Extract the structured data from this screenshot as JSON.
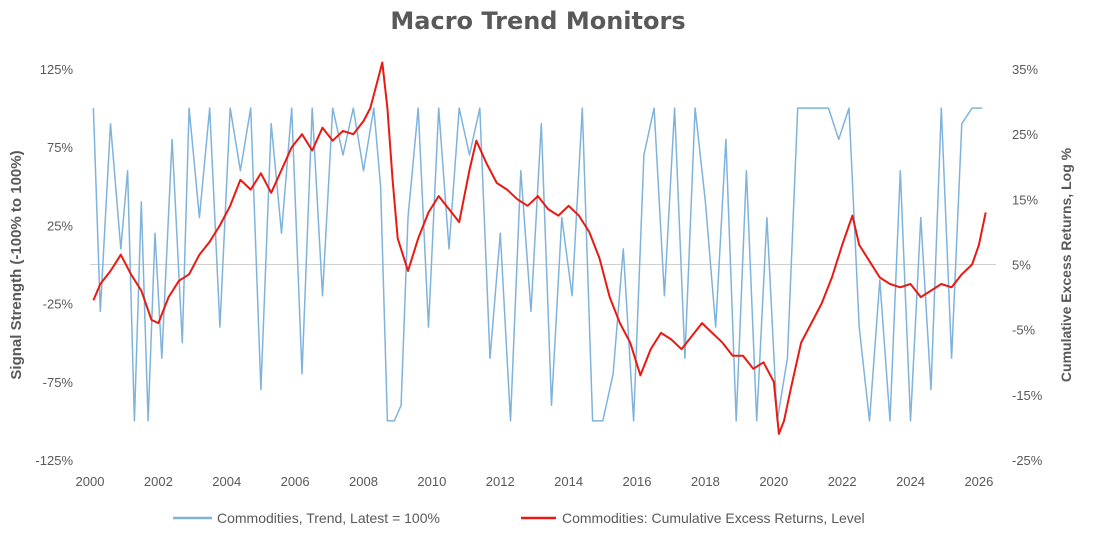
{
  "chart_data": {
    "type": "line",
    "title": "Macro Trend Monitors",
    "y_left_label": "Signal Strength (-100% to 100%)",
    "y_right_label": "Cumulative Excess Returns, Log %",
    "x_ticks": [
      "2000",
      "2002",
      "2004",
      "2006",
      "2008",
      "2010",
      "2012",
      "2014",
      "2016",
      "2018",
      "2020",
      "2022",
      "2024",
      "2026"
    ],
    "x_range": [
      2000,
      2026.5
    ],
    "y_left_ticks": [
      "125%",
      "75%",
      "25%",
      "-25%",
      "-75%",
      "-125%"
    ],
    "y_left_range": [
      -125,
      125
    ],
    "y_right_ticks": [
      "35%",
      "25%",
      "15%",
      "5%",
      "-5%",
      "-15%",
      "-25%"
    ],
    "y_right_range": [
      -25,
      35
    ],
    "zero_line": 0,
    "legend_position": "bottom",
    "series": [
      {
        "name": "Commodities, Trend, Latest = 100%",
        "axis": "left",
        "color": "#7fb3dc",
        "x": [
          2000.1,
          2000.3,
          2000.6,
          2000.9,
          2001.1,
          2001.3,
          2001.5,
          2001.7,
          2001.9,
          2002.1,
          2002.4,
          2002.7,
          2002.9,
          2003.2,
          2003.5,
          2003.8,
          2004.1,
          2004.4,
          2004.7,
          2005.0,
          2005.3,
          2005.6,
          2005.9,
          2006.2,
          2006.5,
          2006.8,
          2007.1,
          2007.4,
          2007.7,
          2008.0,
          2008.3,
          2008.5,
          2008.7,
          2008.9,
          2009.1,
          2009.3,
          2009.6,
          2009.9,
          2010.2,
          2010.5,
          2010.8,
          2011.1,
          2011.4,
          2011.7,
          2012.0,
          2012.3,
          2012.6,
          2012.9,
          2013.2,
          2013.5,
          2013.8,
          2014.1,
          2014.4,
          2014.7,
          2015.0,
          2015.3,
          2015.6,
          2015.9,
          2016.2,
          2016.5,
          2016.8,
          2017.1,
          2017.4,
          2017.7,
          2018.0,
          2018.3,
          2018.6,
          2018.9,
          2019.2,
          2019.5,
          2019.8,
          2020.1,
          2020.4,
          2020.7,
          2021.0,
          2021.3,
          2021.6,
          2021.9,
          2022.2,
          2022.5,
          2022.8,
          2023.1,
          2023.4,
          2023.7,
          2024.0,
          2024.3,
          2024.6,
          2024.9,
          2025.2,
          2025.5,
          2025.8,
          2026.1
        ],
        "values": [
          100,
          -30,
          90,
          10,
          60,
          -100,
          40,
          -100,
          20,
          -60,
          80,
          -50,
          100,
          30,
          100,
          -40,
          100,
          60,
          100,
          -80,
          90,
          20,
          100,
          -70,
          100,
          -20,
          100,
          70,
          100,
          60,
          100,
          50,
          -100,
          -100,
          -90,
          30,
          100,
          -40,
          100,
          10,
          100,
          70,
          100,
          -60,
          20,
          -100,
          60,
          -30,
          90,
          -90,
          30,
          -20,
          100,
          -100,
          -100,
          -70,
          10,
          -100,
          70,
          100,
          -20,
          100,
          -60,
          100,
          40,
          -40,
          80,
          -100,
          60,
          -100,
          30,
          -100,
          -60,
          100,
          100,
          100,
          100,
          80,
          100,
          -40,
          -100,
          -10,
          -100,
          60,
          -100,
          30,
          -80,
          100,
          -60,
          90,
          100,
          100
        ]
      },
      {
        "name": "Commodities: Cumulative Excess Returns, Level",
        "axis": "right",
        "color": "#e81a12",
        "x": [
          2000.1,
          2000.3,
          2000.6,
          2000.9,
          2001.2,
          2001.5,
          2001.8,
          2002.0,
          2002.3,
          2002.6,
          2002.9,
          2003.2,
          2003.5,
          2003.8,
          2004.1,
          2004.4,
          2004.7,
          2005.0,
          2005.3,
          2005.6,
          2005.9,
          2006.2,
          2006.5,
          2006.8,
          2007.1,
          2007.4,
          2007.7,
          2008.0,
          2008.2,
          2008.4,
          2008.55,
          2008.7,
          2008.85,
          2009.0,
          2009.3,
          2009.6,
          2009.9,
          2010.2,
          2010.5,
          2010.8,
          2011.1,
          2011.3,
          2011.6,
          2011.9,
          2012.2,
          2012.5,
          2012.8,
          2013.1,
          2013.4,
          2013.7,
          2014.0,
          2014.3,
          2014.6,
          2014.9,
          2015.2,
          2015.5,
          2015.8,
          2016.1,
          2016.4,
          2016.7,
          2017.0,
          2017.3,
          2017.6,
          2017.9,
          2018.2,
          2018.5,
          2018.8,
          2019.1,
          2019.4,
          2019.7,
          2020.0,
          2020.15,
          2020.3,
          2020.5,
          2020.8,
          2021.1,
          2021.4,
          2021.7,
          2022.0,
          2022.3,
          2022.5,
          2022.8,
          2023.1,
          2023.4,
          2023.7,
          2024.0,
          2024.3,
          2024.6,
          2024.9,
          2025.2,
          2025.5,
          2025.8,
          2026.0,
          2026.2
        ],
        "values": [
          -0.5,
          2,
          4,
          6.5,
          3.5,
          1,
          -3.5,
          -4,
          0,
          2.5,
          3.5,
          6.5,
          8.5,
          11,
          14,
          18,
          16.5,
          19,
          16,
          19.5,
          23,
          25,
          22.5,
          26,
          24,
          25.5,
          25,
          27,
          29,
          33,
          36,
          29,
          18,
          9,
          4,
          9,
          13,
          15.5,
          13.5,
          11.5,
          19.5,
          24,
          20.5,
          17.5,
          16.5,
          15,
          14,
          15.5,
          13.5,
          12.5,
          14,
          12.5,
          10,
          6,
          0,
          -4,
          -7,
          -12,
          -8,
          -5.5,
          -6.5,
          -8,
          -6,
          -4,
          -5.5,
          -7,
          -9,
          -9,
          -11,
          -10,
          -13,
          -21,
          -19,
          -14,
          -7,
          -4,
          -1,
          3,
          8,
          12.5,
          8,
          5.5,
          3,
          2,
          1.5,
          2,
          0,
          1,
          2,
          1.5,
          3.5,
          5,
          8,
          13
        ]
      }
    ]
  }
}
